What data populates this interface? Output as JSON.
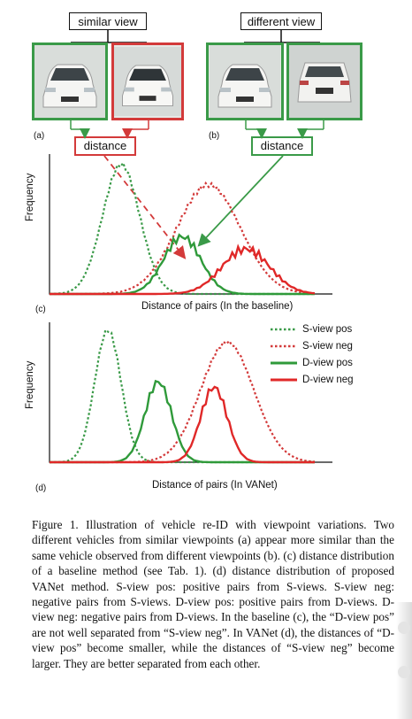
{
  "header": {
    "similar_view_label": "similar view",
    "different_view_label": "different view",
    "panel_a": "(a)",
    "panel_b": "(b)",
    "distance_a": "distance",
    "distance_b": "distance"
  },
  "charts": {
    "baseline": {
      "panel": "(c)",
      "xlabel": "Distance of pairs (In the baseline)",
      "ylabel": "Frequency"
    },
    "vanet": {
      "panel": "(d)",
      "xlabel": "Distance of pairs (In VANet)",
      "ylabel": "Frequency"
    }
  },
  "legend": [
    {
      "label": "S-view pos",
      "color": "#3a9a48",
      "dashed": true
    },
    {
      "label": "S-view neg",
      "color": "#d33a3a",
      "dashed": true
    },
    {
      "label": "D-view pos",
      "color": "#2f9a3a",
      "dashed": false
    },
    {
      "label": "D-view neg",
      "color": "#e02828",
      "dashed": false
    }
  ],
  "chart_data": [
    {
      "type": "line",
      "xlabel": "Distance of pairs (In the baseline)",
      "ylabel": "Frequency",
      "series": [
        {
          "name": "S-view pos",
          "style": "dotted",
          "color": "#3a9a48",
          "center": 0.27,
          "spread": 0.07,
          "peak": 0.95
        },
        {
          "name": "S-view neg",
          "style": "dotted",
          "color": "#d33a3a",
          "center": 0.6,
          "spread": 0.12,
          "peak": 0.8
        },
        {
          "name": "D-view pos",
          "style": "solid",
          "color": "#2f9a3a",
          "center": 0.5,
          "spread": 0.07,
          "peak": 0.42
        },
        {
          "name": "D-view neg",
          "style": "solid",
          "color": "#e02828",
          "center": 0.74,
          "spread": 0.09,
          "peak": 0.33
        }
      ]
    },
    {
      "type": "line",
      "xlabel": "Distance of pairs (In VANet)",
      "ylabel": "Frequency",
      "series": [
        {
          "name": "S-view pos",
          "style": "dotted",
          "color": "#3a9a48",
          "center": 0.22,
          "spread": 0.05,
          "peak": 0.97
        },
        {
          "name": "S-view neg",
          "style": "dotted",
          "color": "#d33a3a",
          "center": 0.67,
          "spread": 0.1,
          "peak": 0.88
        },
        {
          "name": "D-view pos",
          "style": "solid",
          "color": "#2f9a3a",
          "center": 0.41,
          "spread": 0.05,
          "peak": 0.59
        },
        {
          "name": "D-view neg",
          "style": "solid",
          "color": "#e02828",
          "center": 0.62,
          "spread": 0.05,
          "peak": 0.55
        }
      ]
    }
  ],
  "caption": "Figure 1. Illustration of vehicle re-ID with viewpoint variations. Two different vehicles from similar viewpoints (a) appear more similar than the same vehicle observed from different viewpoints (b). (c) distance distribution of a baseline method (see Tab. 1). (d) distance distribution of proposed VANet method. S-view pos: positive pairs from S-views. S-view neg: negative pairs from S-views. D-view pos: positive pairs from D-views. D-view neg: negative pairs from D-views. In the baseline (c), the “D-view pos” are not well separated from “S-view neg”. In VANet (d), the distances of “D-view pos” become smaller, while the distances of “S-view neg” become larger. They are better separated from each other."
}
